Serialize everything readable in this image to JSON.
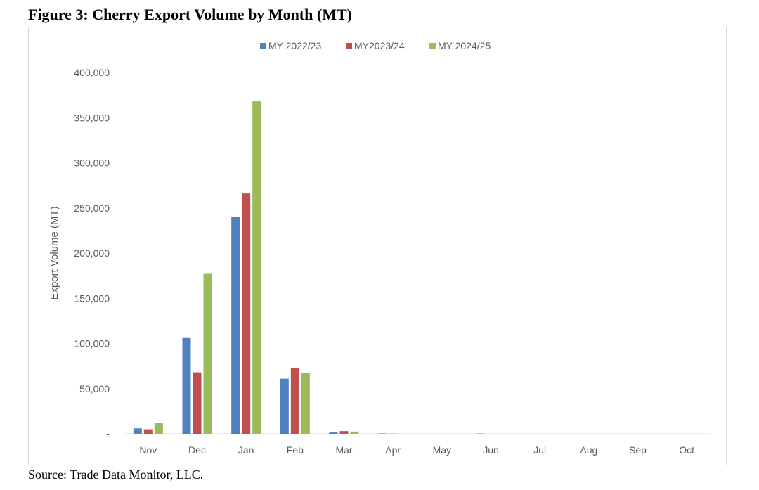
{
  "figure": {
    "title": "Figure 3: Cherry Export Volume by Month (MT)",
    "source": "Source: Trade Data Monitor, LLC."
  },
  "chart_data": {
    "type": "bar",
    "title": "",
    "xlabel": "",
    "ylabel": "Export Volume (MT)",
    "ylim": [
      0,
      400000
    ],
    "yticks": [
      0,
      50000,
      100000,
      150000,
      200000,
      250000,
      300000,
      350000,
      400000
    ],
    "ytick_labels": [
      "-",
      "50,000",
      "100,000",
      "150,000",
      "200,000",
      "250,000",
      "300,000",
      "350,000",
      "400,000"
    ],
    "grid": false,
    "legend_position": "top-center",
    "categories": [
      "Nov",
      "Dec",
      "Jan",
      "Feb",
      "Mar",
      "Apr",
      "May",
      "Jun",
      "Jul",
      "Aug",
      "Sep",
      "Oct"
    ],
    "series": [
      {
        "name": "MY 2022/23",
        "color": "#4f81bd",
        "values": [
          6000,
          106000,
          240000,
          61000,
          1500,
          400,
          0,
          300,
          0,
          0,
          0,
          0
        ]
      },
      {
        "name": "MY2023/24",
        "color": "#c0504d",
        "values": [
          5000,
          68000,
          266000,
          73000,
          3000,
          200,
          0,
          0,
          0,
          0,
          0,
          0
        ]
      },
      {
        "name": "MY 2024/25",
        "color": "#9bbb59",
        "values": [
          12000,
          177000,
          368000,
          67000,
          2500,
          0,
          0,
          0,
          0,
          0,
          0,
          0
        ]
      }
    ]
  }
}
